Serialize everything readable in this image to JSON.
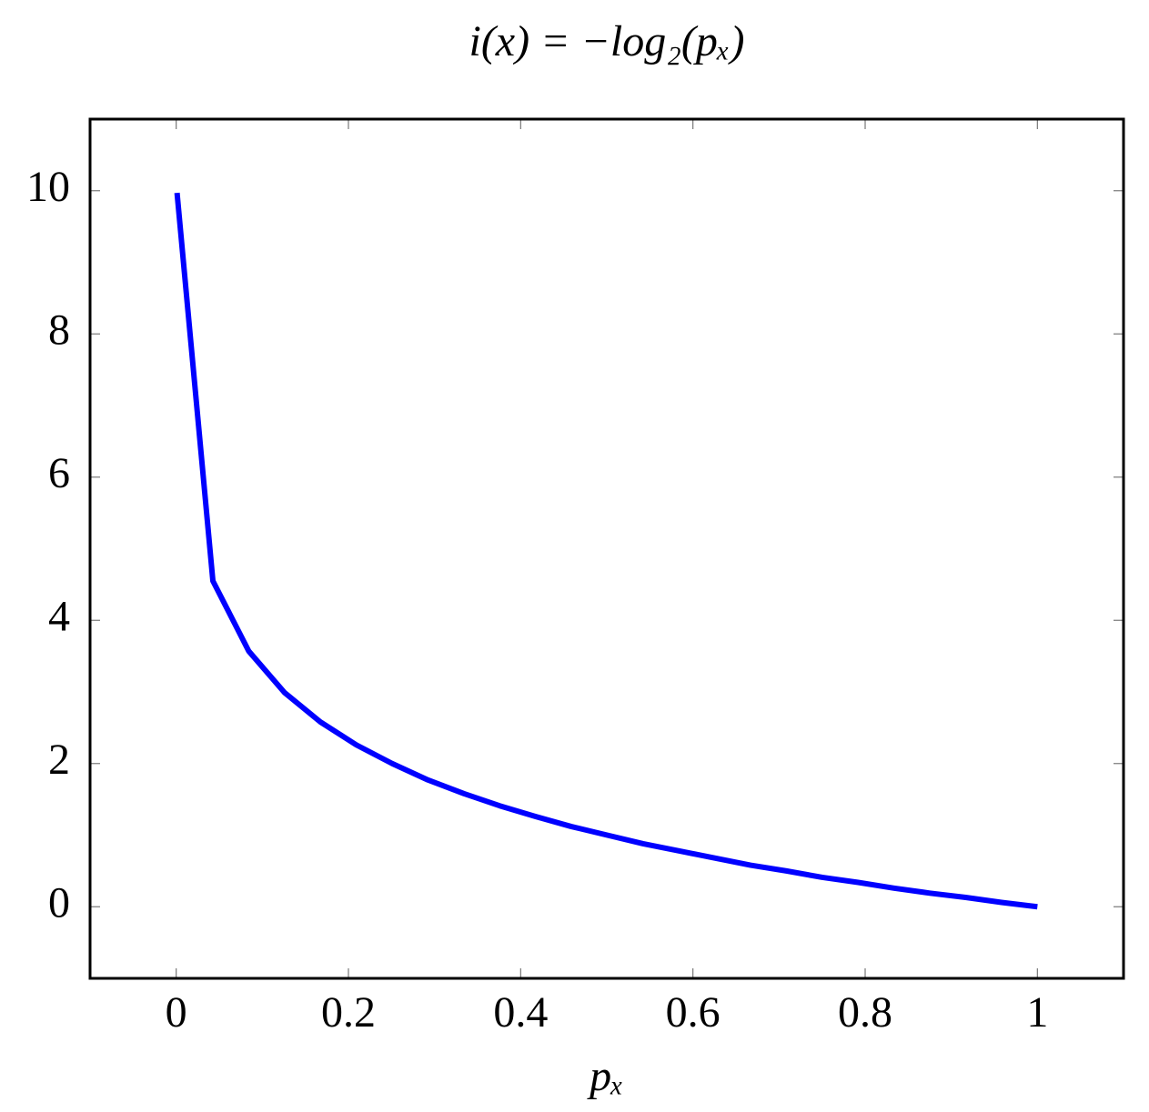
{
  "chart_data": {
    "type": "line",
    "title": "i(x) = −log₂(pₓ)",
    "x_label": "pₓ",
    "x": [
      0.001,
      0.042625,
      0.08425,
      0.125875,
      0.1675,
      0.209125,
      0.25075,
      0.292375,
      0.334,
      0.375625,
      0.41725,
      0.458875,
      0.5005,
      0.542125,
      0.58375,
      0.625375,
      0.667,
      0.708625,
      0.75025,
      0.791875,
      0.8335,
      0.875125,
      0.91675,
      0.958375,
      1
    ],
    "series": [
      {
        "color": "#0000ff",
        "values": [
          9.97,
          4.55,
          3.57,
          2.99,
          2.58,
          2.26,
          2.0,
          1.77,
          1.58,
          1.41,
          1.26,
          1.12,
          1.0,
          0.88,
          0.78,
          0.68,
          0.58,
          0.5,
          0.41,
          0.34,
          0.26,
          0.19,
          0.13,
          0.06,
          0
        ]
      }
    ],
    "xlim": [
      -0.1,
      1.1
    ],
    "xticks": [
      0,
      0.2,
      0.4,
      0.6,
      0.8,
      1
    ],
    "ylim": [
      -1,
      11
    ],
    "yticks": [
      0,
      2,
      4,
      6,
      8,
      10
    ],
    "grid": false
  }
}
